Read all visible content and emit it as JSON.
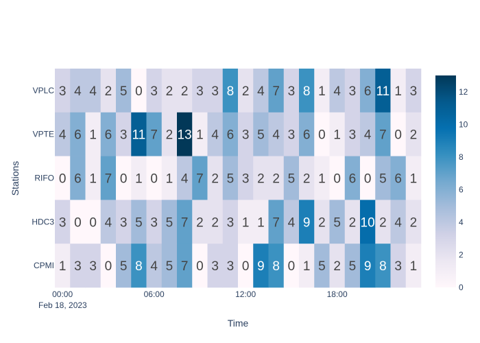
{
  "chart_data": {
    "type": "heatmap",
    "title": "",
    "xlabel": "Time",
    "ylabel": "Stations",
    "rows": [
      "VPLC",
      "VPTE",
      "RIFO",
      "HDC3",
      "CPMI"
    ],
    "x_tick_labels": [
      "00:00",
      "06:00",
      "12:00",
      "18:00"
    ],
    "x_date_label": "Feb 18, 2023",
    "x_start": "2023-02-18 00:00",
    "x_step_hours": 1,
    "z": [
      [
        3,
        4,
        4,
        2,
        5,
        0,
        3,
        2,
        2,
        3,
        3,
        8,
        2,
        4,
        7,
        3,
        8,
        1,
        4,
        3,
        6,
        11,
        1,
        3
      ],
      [
        4,
        6,
        1,
        6,
        3,
        11,
        7,
        2,
        13,
        1,
        4,
        6,
        3,
        5,
        4,
        3,
        6,
        0,
        1,
        3,
        4,
        7,
        0,
        2
      ],
      [
        0,
        6,
        1,
        7,
        0,
        1,
        0,
        1,
        4,
        7,
        2,
        5,
        3,
        2,
        2,
        5,
        2,
        1,
        0,
        6,
        0,
        5,
        6,
        1
      ],
      [
        3,
        0,
        0,
        4,
        3,
        5,
        3,
        5,
        7,
        2,
        2,
        3,
        1,
        1,
        7,
        4,
        9,
        2,
        5,
        2,
        10,
        2,
        4,
        2
      ],
      [
        1,
        3,
        3,
        0,
        5,
        8,
        4,
        5,
        7,
        0,
        3,
        3,
        0,
        9,
        8,
        0,
        1,
        5,
        2,
        5,
        9,
        8,
        3,
        1
      ]
    ],
    "zmin": 0,
    "zmax": 13,
    "colorscale": "PuBu",
    "colorbar_ticks": [
      0,
      2,
      4,
      6,
      8,
      10,
      12
    ],
    "show_cell_text": true
  }
}
